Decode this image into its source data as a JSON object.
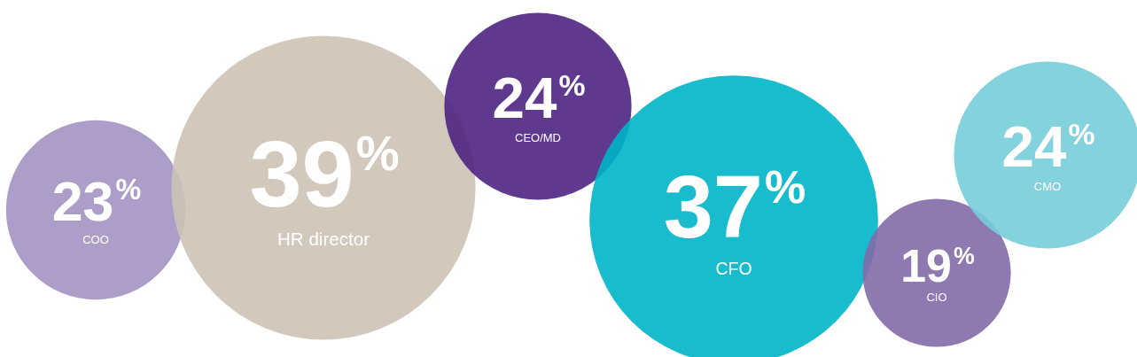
{
  "chart_data": {
    "type": "other",
    "categories": [
      "COO",
      "HR director",
      "CEO/MD",
      "CFO",
      "CIO",
      "CMO"
    ],
    "values": [
      23,
      39,
      24,
      37,
      19,
      24
    ],
    "value_labels": [
      "23%",
      "39%",
      "24%",
      "37%",
      "19%",
      "24%"
    ],
    "colors": [
      "#a393c2",
      "#cdc2b5",
      "#4e2381",
      "#00b5c8",
      "#826aa8",
      "#77cdd9"
    ]
  }
}
